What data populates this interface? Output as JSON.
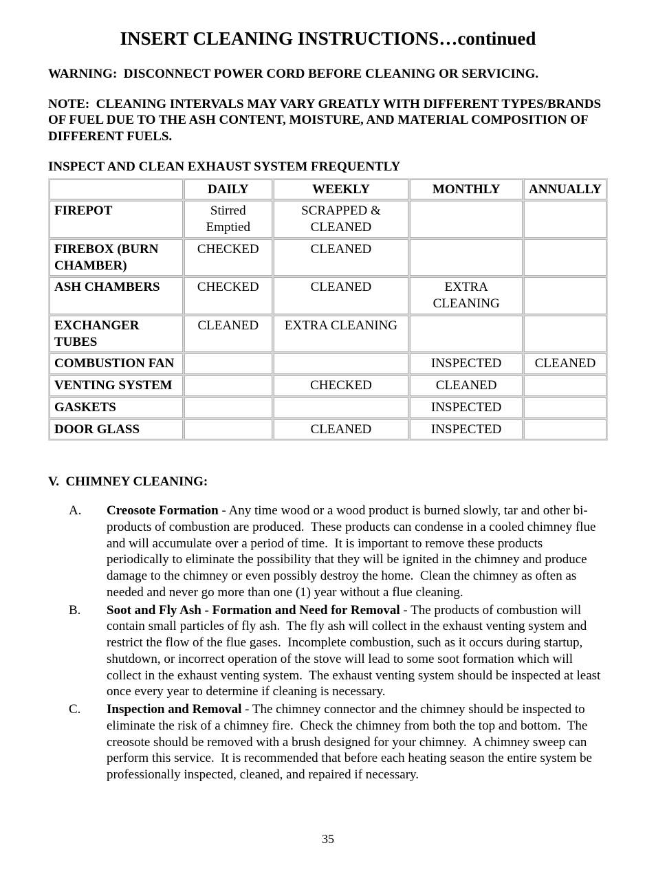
{
  "title": "INSERT CLEANING INSTRUCTIONS…continued",
  "warning": "WARNING:  DISCONNECT POWER CORD BEFORE CLEANING OR SERVICING.",
  "note": "NOTE:  CLEANING INTERVALS MAY VARY GREATLY WITH DIFFERENT TYPES/BRANDS OF FUEL DUE TO THE ASH CONTENT, MOISTURE, AND MATERIAL COMPOSITION OF DIFFERENT FUELS.",
  "tableHeading": "INSPECT AND CLEAN EXHAUST SYSTEM FREQUENTLY",
  "table": {
    "columns": [
      "",
      "DAILY",
      "WEEKLY",
      "MONTHLY",
      "ANNUALLY"
    ],
    "colWidths": [
      "180px",
      "auto",
      "auto",
      "auto",
      "auto"
    ],
    "rows": [
      {
        "label": "FIREPOT",
        "daily": "Stirred Emptied",
        "weekly": "SCRAPPED & CLEANED",
        "monthly": "",
        "annually": ""
      },
      {
        "label": "FIREBOX (BURN CHAMBER)",
        "daily": "CHECKED",
        "weekly": "CLEANED",
        "monthly": "",
        "annually": ""
      },
      {
        "label": "ASH CHAMBERS",
        "daily": "CHECKED",
        "weekly": "CLEANED",
        "monthly": "EXTRA CLEANING",
        "annually": ""
      },
      {
        "label": "EXCHANGER TUBES",
        "daily": "CLEANED",
        "weekly": "EXTRA CLEANING",
        "monthly": "",
        "annually": ""
      },
      {
        "label": "COMBUSTION FAN",
        "daily": "",
        "weekly": "",
        "monthly": "INSPECTED",
        "annually": "CLEANED"
      },
      {
        "label": "VENTING SYSTEM",
        "daily": "",
        "weekly": "CHECKED",
        "monthly": "CLEANED",
        "annually": ""
      },
      {
        "label": "GASKETS",
        "daily": "",
        "weekly": "",
        "monthly": "INSPECTED",
        "annually": ""
      },
      {
        "label": "DOOR GLASS",
        "daily": "",
        "weekly": "CLEANED",
        "monthly": "INSPECTED",
        "annually": ""
      }
    ]
  },
  "section": {
    "heading": "V.  CHIMNEY CLEANING:",
    "items": [
      {
        "marker": "A.",
        "lead": "Creosote Formation",
        "body": " - Any time wood or a wood product is burned slowly, tar and other bi-products of combustion are produced.  These products can condense in a cooled chimney flue and will accumulate over a period of time.  It is important to remove these products periodically to eliminate the possibility that they will be ignited in the chimney and produce damage to the chimney or even possibly destroy the home.  Clean the chimney as often as needed and never go more than one (1) year without a flue cleaning."
      },
      {
        "marker": "B.",
        "lead": "Soot and Fly Ash - Formation and Need for Removal",
        "body": " - The products of combustion will contain small particles of fly ash.  The fly ash will collect in the exhaust venting system and restrict the flow of the flue gases.  Incomplete combustion, such as it occurs during startup, shutdown, or incorrect operation of the stove will lead to some soot formation which will collect in the exhaust venting system.  The exhaust venting system should be inspected at least once every year to determine if cleaning is necessary."
      },
      {
        "marker": "C.",
        "lead": "Inspection and Removal",
        "body": " - The chimney connector and the chimney should be inspected to eliminate the risk of a chimney fire.  Check the chimney from both the top and bottom.  The creosote should be removed with a brush designed for your chimney.  A chimney sweep can perform this service.  It is recommended that before each heating season the entire system be professionally inspected, cleaned, and repaired if necessary."
      }
    ]
  },
  "pageNumber": "35"
}
